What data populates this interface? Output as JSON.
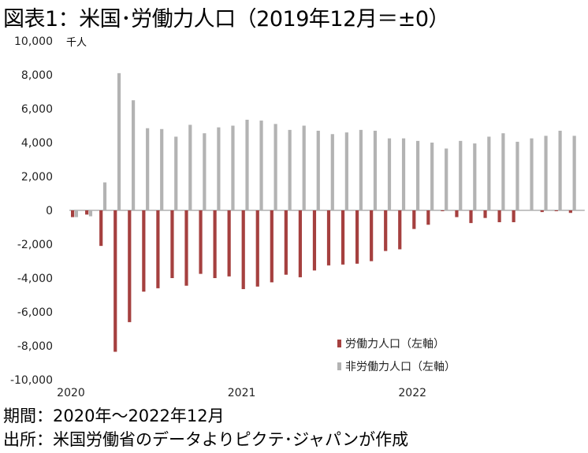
{
  "title": "図表1：米国･労働力人口（2019年12月＝±0）",
  "footer": {
    "period": "期間：2020年～2022年12月",
    "source": "出所：米国労働省のデータよりピクテ･ジャパンが作成"
  },
  "chart_data": {
    "type": "bar",
    "unit": "千人",
    "categories": [
      "2020-01",
      "2020-02",
      "2020-03",
      "2020-04",
      "2020-05",
      "2020-06",
      "2020-07",
      "2020-08",
      "2020-09",
      "2020-10",
      "2020-11",
      "2020-12",
      "2021-01",
      "2021-02",
      "2021-03",
      "2021-04",
      "2021-05",
      "2021-06",
      "2021-07",
      "2021-08",
      "2021-09",
      "2021-10",
      "2021-11",
      "2021-12",
      "2022-01",
      "2022-02",
      "2022-03",
      "2022-04",
      "2022-05",
      "2022-06",
      "2022-07",
      "2022-08",
      "2022-09",
      "2022-10",
      "2022-11",
      "2022-12"
    ],
    "x_tick_labels": [
      {
        "index": 0,
        "label": "2020"
      },
      {
        "index": 12,
        "label": "2021"
      },
      {
        "index": 24,
        "label": "2022"
      }
    ],
    "series": [
      {
        "name": "労働力人口（左軸）",
        "color": "#a5403f",
        "values": [
          -400,
          -250,
          -2100,
          -8350,
          -6600,
          -4800,
          -4600,
          -4000,
          -4450,
          -3750,
          -4000,
          -3900,
          -4650,
          -4500,
          -4250,
          -3800,
          -3950,
          -3550,
          -3250,
          -3200,
          -3150,
          -3000,
          -2400,
          -2300,
          -1100,
          -850,
          -50,
          -400,
          -750,
          -450,
          -700,
          -700,
          0,
          -100,
          -50,
          -150
        ]
      },
      {
        "name": "非労働力人口（左軸）",
        "color": "#b3b3b3",
        "values": [
          -400,
          -350,
          1650,
          8100,
          6500,
          4850,
          4800,
          4350,
          5050,
          4550,
          4900,
          5000,
          5350,
          5300,
          5100,
          4750,
          5000,
          4700,
          4500,
          4600,
          4750,
          4700,
          4250,
          4250,
          4100,
          4000,
          3650,
          4100,
          3950,
          4350,
          4550,
          4050,
          4250,
          4400,
          4700,
          4400
        ]
      }
    ],
    "y_ticks": [
      "10,000",
      "8,000",
      "6,000",
      "4,000",
      "2,000",
      "0",
      "-2,000",
      "-4,000",
      "-6,000",
      "-8,000",
      "-10,000"
    ],
    "ylim": [
      -10000,
      10000
    ],
    "grid": false,
    "legend_position": "bottom-right"
  }
}
